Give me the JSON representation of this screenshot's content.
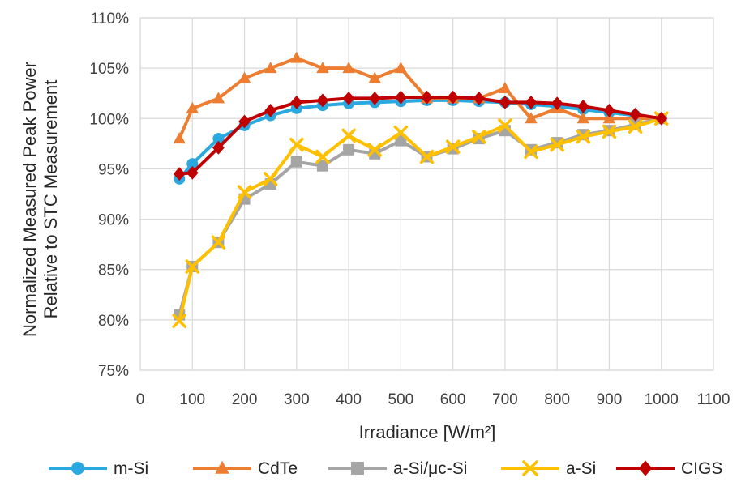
{
  "chart_data": {
    "type": "line",
    "xlabel": "Irradiance [W/m²]",
    "ylabel_lines": [
      "Normalized Measured Peak Power",
      "Relative to STC Measurement"
    ],
    "xlim": [
      0,
      1100
    ],
    "ylim": [
      0.75,
      1.1
    ],
    "x_ticks": [
      "0",
      "100",
      "200",
      "300",
      "400",
      "500",
      "600",
      "700",
      "800",
      "900",
      "1000",
      "1100"
    ],
    "y_ticks": [
      "75%",
      "80%",
      "85%",
      "90%",
      "95%",
      "100%",
      "105%",
      "110%"
    ],
    "grid": "horizontal and vertical",
    "legend_position": "bottom",
    "x": [
      75,
      100,
      150,
      200,
      250,
      300,
      350,
      400,
      450,
      500,
      550,
      600,
      650,
      700,
      750,
      800,
      850,
      900,
      950,
      1000
    ],
    "series": [
      {
        "name": "m-Si",
        "color": "#2aa8e0",
        "marker": "circle",
        "values": [
          0.94,
          0.955,
          0.98,
          0.993,
          1.003,
          1.01,
          1.013,
          1.015,
          1.016,
          1.017,
          1.018,
          1.018,
          1.017,
          1.016,
          1.014,
          1.012,
          1.009,
          1.006,
          1.003,
          1.0
        ]
      },
      {
        "name": "CdTe",
        "color": "#ed7d31",
        "marker": "triangle",
        "values": [
          0.98,
          1.01,
          1.02,
          1.04,
          1.05,
          1.06,
          1.05,
          1.05,
          1.04,
          1.05,
          1.02,
          1.02,
          1.02,
          1.03,
          1.0,
          1.01,
          1.0,
          1.0,
          1.0,
          1.0
        ]
      },
      {
        "name": "a-Si/μc-Si",
        "color": "#a5a5a5",
        "marker": "square",
        "values": [
          0.805,
          0.853,
          0.877,
          0.92,
          0.935,
          0.957,
          0.953,
          0.969,
          0.965,
          0.978,
          0.962,
          0.97,
          0.98,
          0.988,
          0.969,
          0.976,
          0.984,
          0.988,
          0.994,
          1.0
        ]
      },
      {
        "name": "a-Si",
        "color": "#ffc000",
        "marker": "x",
        "values": [
          0.799,
          0.853,
          0.877,
          0.927,
          0.94,
          0.974,
          0.962,
          0.983,
          0.969,
          0.986,
          0.962,
          0.972,
          0.982,
          0.993,
          0.967,
          0.974,
          0.982,
          0.987,
          0.992,
          1.0
        ]
      },
      {
        "name": "CIGS",
        "color": "#c00000",
        "marker": "diamond",
        "values": [
          0.945,
          0.946,
          0.971,
          0.997,
          1.008,
          1.016,
          1.018,
          1.02,
          1.02,
          1.021,
          1.021,
          1.021,
          1.02,
          1.016,
          1.016,
          1.015,
          1.012,
          1.008,
          1.004,
          1.0
        ]
      }
    ]
  }
}
